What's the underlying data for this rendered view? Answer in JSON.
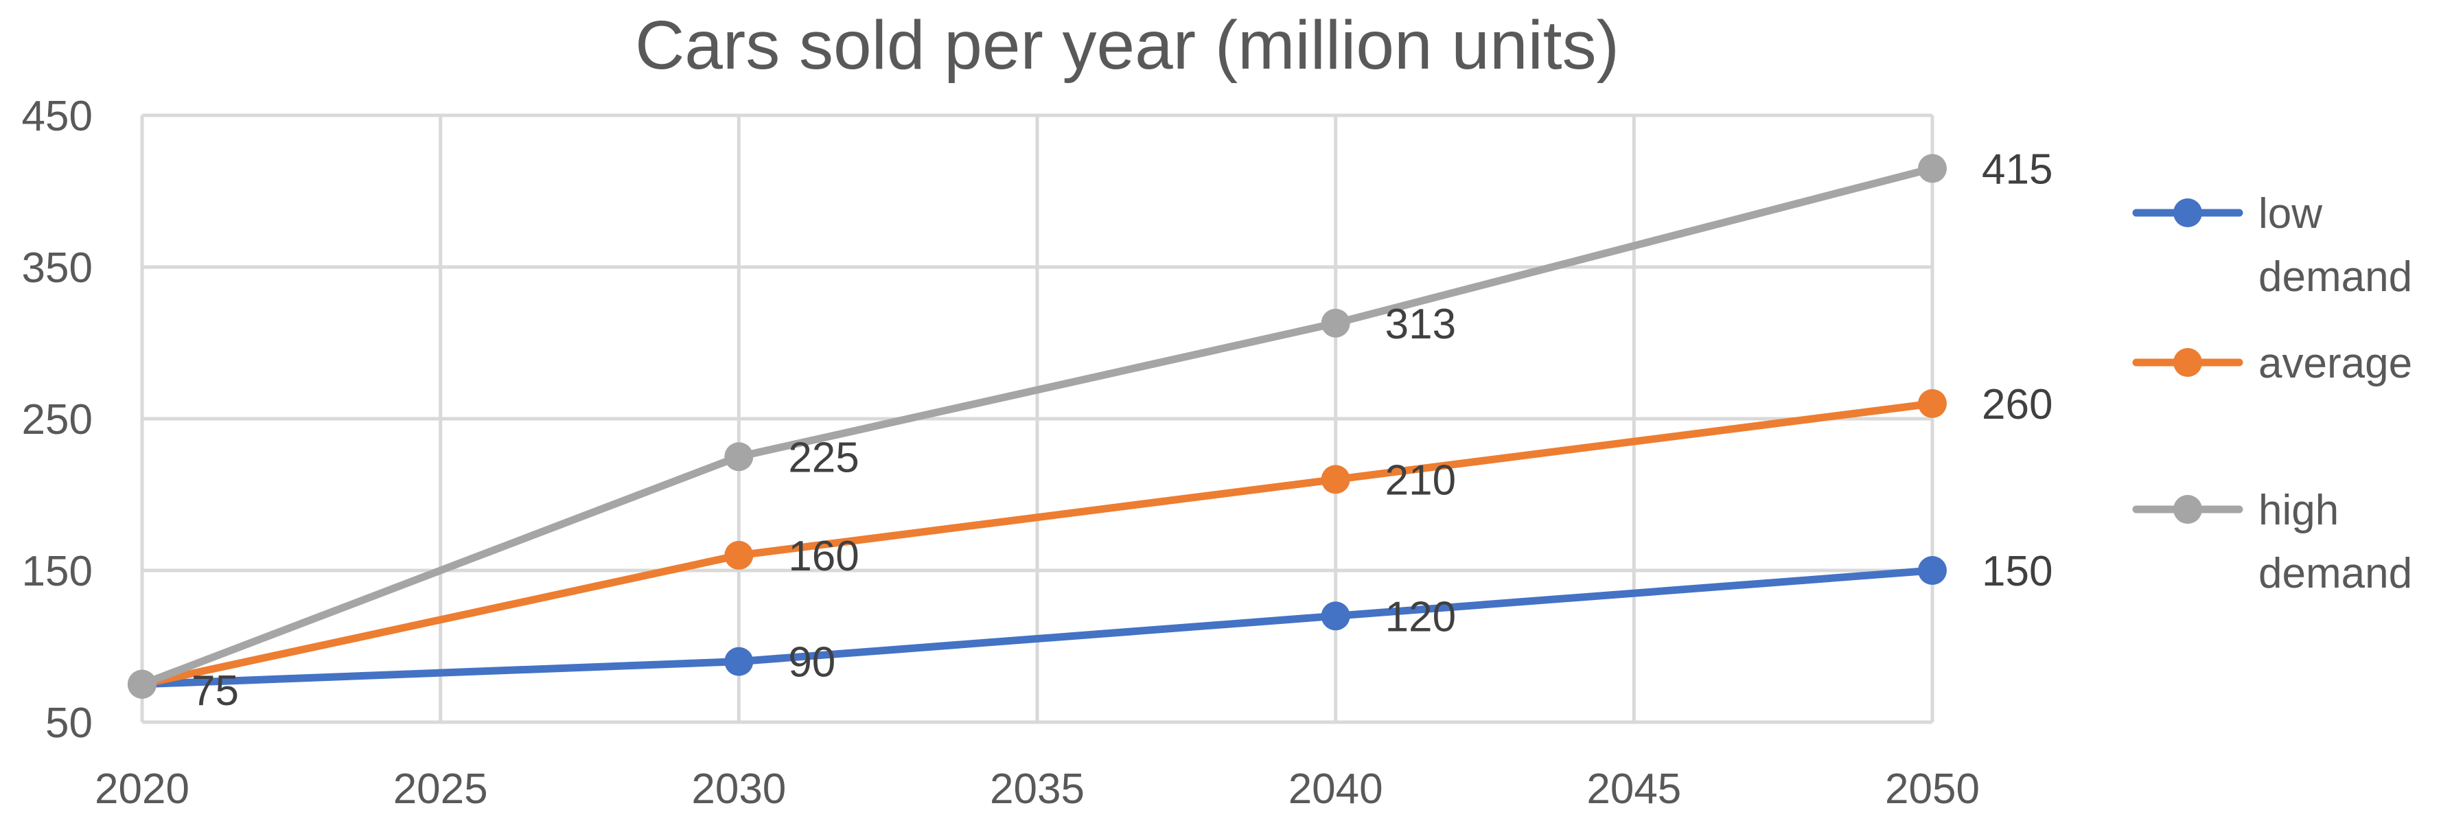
{
  "chart_data": {
    "type": "line",
    "title": "Cars sold per year (million units)",
    "xlabel": "",
    "ylabel": "",
    "x_ticks": [
      2020,
      2025,
      2030,
      2035,
      2040,
      2045,
      2050
    ],
    "y_ticks": [
      50,
      150,
      250,
      350,
      450
    ],
    "xlim": [
      2020,
      2050
    ],
    "ylim": [
      50,
      450
    ],
    "grid": true,
    "legend_position": "right",
    "series": [
      {
        "name": "low demand",
        "legend_lines": [
          "low",
          "demand"
        ],
        "color": "#4472C4",
        "x": [
          2020,
          2030,
          2040,
          2050
        ],
        "values": [
          75,
          90,
          120,
          150
        ],
        "labels": [
          "75",
          "90",
          "120",
          "150"
        ]
      },
      {
        "name": "average",
        "legend_lines": [
          "average"
        ],
        "color": "#ED7D31",
        "x": [
          2020,
          2030,
          2040,
          2050
        ],
        "values": [
          75,
          160,
          210,
          260
        ],
        "labels": [
          "",
          "160",
          "210",
          "260"
        ]
      },
      {
        "name": "high demand",
        "legend_lines": [
          "high",
          "demand"
        ],
        "color": "#A5A5A5",
        "x": [
          2020,
          2030,
          2040,
          2050
        ],
        "values": [
          75,
          225,
          313,
          415
        ],
        "labels": [
          "",
          "225",
          "313",
          "415"
        ]
      }
    ]
  }
}
